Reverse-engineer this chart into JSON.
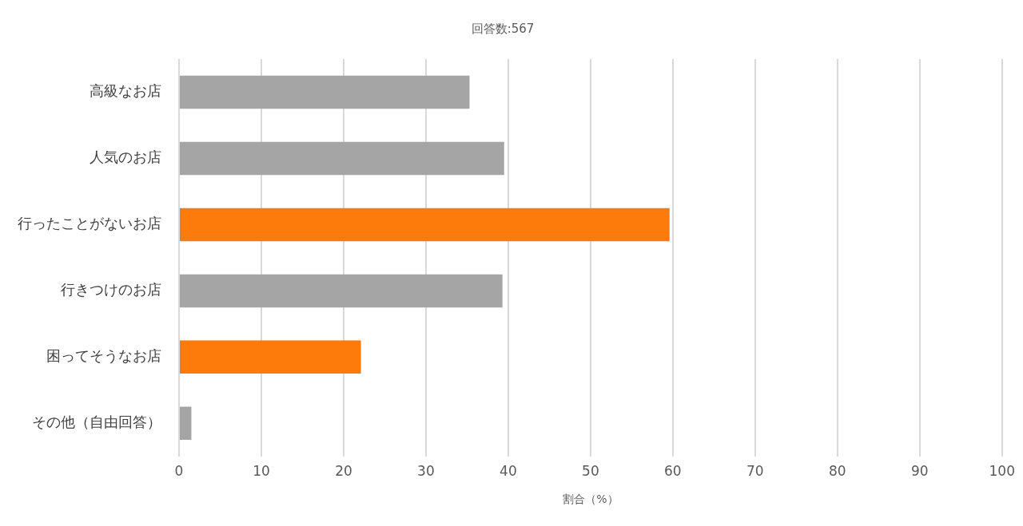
{
  "chart_data": {
    "type": "bar",
    "orientation": "horizontal",
    "title": "回答数:567",
    "xlabel": "割合（%）",
    "categories": [
      "高級なお店",
      "人気のお店",
      "行ったことがないお店",
      "行きつけのお店",
      "困ってそうなお店",
      "その他（自由回答）"
    ],
    "values": [
      35.3,
      39.5,
      59.6,
      39.3,
      22.1,
      1.5
    ],
    "colors": [
      "#a5a5a5",
      "#a5a5a5",
      "#fd7b0a",
      "#a5a5a5",
      "#fd7b0a",
      "#a5a5a5"
    ],
    "xlim": [
      0,
      100
    ],
    "xticks": [
      0,
      10,
      20,
      30,
      40,
      50,
      60,
      70,
      80,
      90,
      100
    ],
    "grid": "x"
  }
}
